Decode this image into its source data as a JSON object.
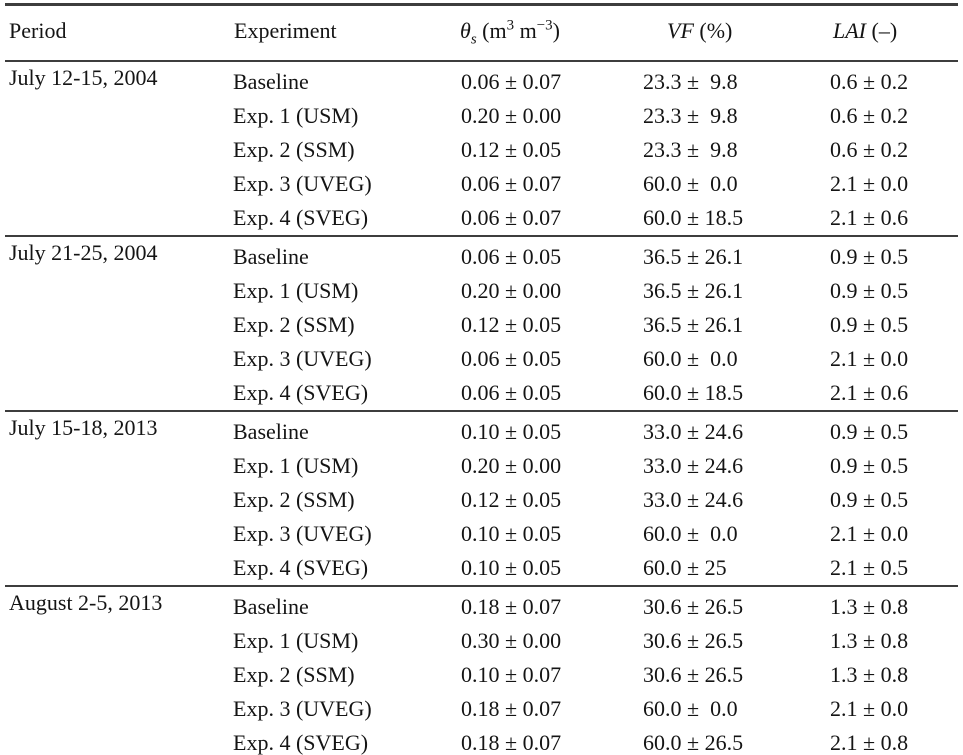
{
  "page": {
    "background": "#ffffff",
    "text_color": "#141414",
    "rule_color": "#3d3d3d"
  },
  "table": {
    "header": {
      "period": "Period",
      "experiment": "Experiment",
      "theta": {
        "symbol": "θ",
        "subscript": "s",
        "unit_open": " (m",
        "sup1": "3",
        "unit_mid": " m",
        "sup2": "−3",
        "unit_close": ")"
      },
      "vf": {
        "symbol": "VF",
        "unit": " (%)"
      },
      "lai": {
        "symbol": "LAI",
        "unit": " (–)"
      }
    },
    "blocks": [
      {
        "period": "July 12-15, 2004",
        "rows": [
          {
            "experiment": "Baseline",
            "theta": "0.06 ± 0.07",
            "vf": "23.3 ±  9.8",
            "lai": "0.6 ± 0.2"
          },
          {
            "experiment": "Exp. 1 (USM)",
            "theta": "0.20 ± 0.00",
            "vf": "23.3 ±  9.8",
            "lai": "0.6 ± 0.2"
          },
          {
            "experiment": "Exp. 2 (SSM)",
            "theta": "0.12 ± 0.05",
            "vf": "23.3 ±  9.8",
            "lai": "0.6 ± 0.2"
          },
          {
            "experiment": "Exp. 3 (UVEG)",
            "theta": "0.06 ± 0.07",
            "vf": "60.0 ±  0.0",
            "lai": "2.1 ± 0.0"
          },
          {
            "experiment": "Exp. 4 (SVEG)",
            "theta": "0.06 ± 0.07",
            "vf": "60.0 ± 18.5",
            "lai": "2.1 ± 0.6"
          }
        ]
      },
      {
        "period": "July 21-25, 2004",
        "rows": [
          {
            "experiment": "Baseline",
            "theta": "0.06 ± 0.05",
            "vf": "36.5 ± 26.1",
            "lai": "0.9 ± 0.5"
          },
          {
            "experiment": "Exp. 1 (USM)",
            "theta": "0.20 ± 0.00",
            "vf": "36.5 ± 26.1",
            "lai": "0.9 ± 0.5"
          },
          {
            "experiment": "Exp. 2 (SSM)",
            "theta": "0.12 ± 0.05",
            "vf": "36.5 ± 26.1",
            "lai": "0.9 ± 0.5"
          },
          {
            "experiment": "Exp. 3 (UVEG)",
            "theta": "0.06 ± 0.05",
            "vf": "60.0 ±  0.0",
            "lai": "2.1 ± 0.0"
          },
          {
            "experiment": "Exp. 4 (SVEG)",
            "theta": "0.06 ± 0.05",
            "vf": "60.0 ± 18.5",
            "lai": "2.1 ± 0.6"
          }
        ]
      },
      {
        "period": "July 15-18, 2013",
        "rows": [
          {
            "experiment": "Baseline",
            "theta": "0.10 ± 0.05",
            "vf": "33.0 ± 24.6",
            "lai": "0.9 ± 0.5"
          },
          {
            "experiment": "Exp. 1 (USM)",
            "theta": "0.20 ± 0.00",
            "vf": "33.0 ± 24.6",
            "lai": "0.9 ± 0.5"
          },
          {
            "experiment": "Exp. 2 (SSM)",
            "theta": "0.12 ± 0.05",
            "vf": "33.0 ± 24.6",
            "lai": "0.9 ± 0.5"
          },
          {
            "experiment": "Exp. 3 (UVEG)",
            "theta": "0.10 ± 0.05",
            "vf": "60.0 ±  0.0",
            "lai": "2.1 ± 0.0"
          },
          {
            "experiment": "Exp. 4 (SVEG)",
            "theta": "0.10 ± 0.05",
            "vf": "60.0 ± 25",
            "lai": "2.1 ± 0.5"
          }
        ]
      },
      {
        "period": "August 2-5, 2013",
        "rows": [
          {
            "experiment": "Baseline",
            "theta": "0.18 ± 0.07",
            "vf": "30.6 ± 26.5",
            "lai": "1.3 ± 0.8"
          },
          {
            "experiment": "Exp. 1 (USM)",
            "theta": "0.30 ± 0.00",
            "vf": "30.6 ± 26.5",
            "lai": "1.3 ± 0.8"
          },
          {
            "experiment": "Exp. 2 (SSM)",
            "theta": "0.10 ± 0.07",
            "vf": "30.6 ± 26.5",
            "lai": "1.3 ± 0.8"
          },
          {
            "experiment": "Exp. 3 (UVEG)",
            "theta": "0.18 ± 0.07",
            "vf": "60.0 ±  0.0",
            "lai": "2.1 ± 0.0"
          },
          {
            "experiment": "Exp. 4 (SVEG)",
            "theta": "0.18 ± 0.07",
            "vf": "60.0 ± 26.5",
            "lai": "2.1 ± 0.8"
          }
        ]
      }
    ]
  }
}
